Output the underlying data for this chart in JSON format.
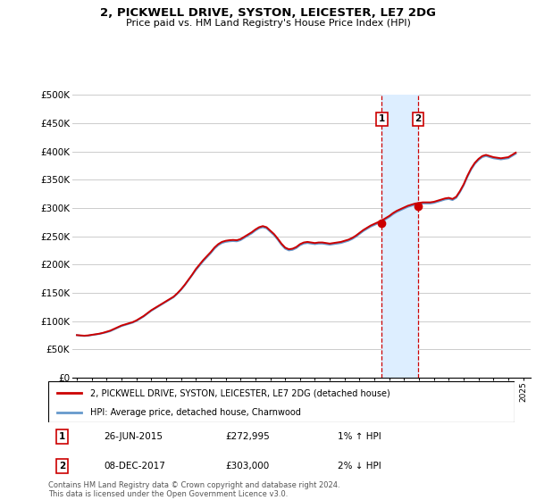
{
  "title": "2, PICKWELL DRIVE, SYSTON, LEICESTER, LE7 2DG",
  "subtitle": "Price paid vs. HM Land Registry's House Price Index (HPI)",
  "ylabel_ticks": [
    "£0",
    "£50K",
    "£100K",
    "£150K",
    "£200K",
    "£250K",
    "£300K",
    "£350K",
    "£400K",
    "£450K",
    "£500K"
  ],
  "ytick_values": [
    0,
    50000,
    100000,
    150000,
    200000,
    250000,
    300000,
    350000,
    400000,
    450000,
    500000
  ],
  "ylim": [
    0,
    500000
  ],
  "xlim_start": 1994.7,
  "xlim_end": 2025.5,
  "transaction1": {
    "date_num": 2015.49,
    "price": 272995,
    "label": "1",
    "hpi_pct": "1%",
    "hpi_dir": "↑",
    "date_str": "26-JUN-2015"
  },
  "transaction2": {
    "date_num": 2017.93,
    "price": 303000,
    "label": "2",
    "hpi_pct": "2%",
    "hpi_dir": "↓",
    "date_str": "08-DEC-2017"
  },
  "legend_line1": "2, PICKWELL DRIVE, SYSTON, LEICESTER, LE7 2DG (detached house)",
  "legend_line2": "HPI: Average price, detached house, Charnwood",
  "footer": "Contains HM Land Registry data © Crown copyright and database right 2024.\nThis data is licensed under the Open Government Licence v3.0.",
  "table_rows": [
    [
      "1",
      "26-JUN-2015",
      "£272,995",
      "1% ↑ HPI"
    ],
    [
      "2",
      "08-DEC-2017",
      "£303,000",
      "2% ↓ HPI"
    ]
  ],
  "line_color_red": "#cc0000",
  "line_color_blue": "#6699cc",
  "shade_color": "#ddeeff",
  "marker_box_color": "#cc0000",
  "background_color": "#ffffff",
  "grid_color": "#cccccc",
  "hpi_data": {
    "years": [
      1995.0,
      1995.25,
      1995.5,
      1995.75,
      1996.0,
      1996.25,
      1996.5,
      1996.75,
      1997.0,
      1997.25,
      1997.5,
      1997.75,
      1998.0,
      1998.25,
      1998.5,
      1998.75,
      1999.0,
      1999.25,
      1999.5,
      1999.75,
      2000.0,
      2000.25,
      2000.5,
      2000.75,
      2001.0,
      2001.25,
      2001.5,
      2001.75,
      2002.0,
      2002.25,
      2002.5,
      2002.75,
      2003.0,
      2003.25,
      2003.5,
      2003.75,
      2004.0,
      2004.25,
      2004.5,
      2004.75,
      2005.0,
      2005.25,
      2005.5,
      2005.75,
      2006.0,
      2006.25,
      2006.5,
      2006.75,
      2007.0,
      2007.25,
      2007.5,
      2007.75,
      2008.0,
      2008.25,
      2008.5,
      2008.75,
      2009.0,
      2009.25,
      2009.5,
      2009.75,
      2010.0,
      2010.25,
      2010.5,
      2010.75,
      2011.0,
      2011.25,
      2011.5,
      2011.75,
      2012.0,
      2012.25,
      2012.5,
      2012.75,
      2013.0,
      2013.25,
      2013.5,
      2013.75,
      2014.0,
      2014.25,
      2014.5,
      2014.75,
      2015.0,
      2015.25,
      2015.5,
      2015.75,
      2016.0,
      2016.25,
      2016.5,
      2016.75,
      2017.0,
      2017.25,
      2017.5,
      2017.75,
      2018.0,
      2018.25,
      2018.5,
      2018.75,
      2019.0,
      2019.25,
      2019.5,
      2019.75,
      2020.0,
      2020.25,
      2020.5,
      2020.75,
      2021.0,
      2021.25,
      2021.5,
      2021.75,
      2022.0,
      2022.25,
      2022.5,
      2022.75,
      2023.0,
      2023.25,
      2023.5,
      2023.75,
      2024.0,
      2024.25,
      2024.5
    ],
    "hpi_values": [
      75000,
      74000,
      73500,
      74000,
      75000,
      76000,
      77000,
      78500,
      80000,
      82000,
      85000,
      88000,
      91000,
      93000,
      95000,
      97000,
      100000,
      104000,
      108000,
      113000,
      118000,
      122000,
      126000,
      130000,
      134000,
      138000,
      142000,
      148000,
      155000,
      163000,
      172000,
      181000,
      190000,
      198000,
      206000,
      213000,
      220000,
      228000,
      234000,
      238000,
      240000,
      241000,
      241500,
      241000,
      243000,
      247000,
      251000,
      255000,
      260000,
      264000,
      266000,
      264000,
      258000,
      252000,
      244000,
      235000,
      228000,
      225000,
      226000,
      229000,
      234000,
      237000,
      238000,
      237000,
      236000,
      237000,
      237000,
      236000,
      235000,
      236000,
      237000,
      238000,
      240000,
      242000,
      245000,
      249000,
      254000,
      259000,
      263000,
      267000,
      270000,
      273000,
      276000,
      280000,
      284000,
      289000,
      293000,
      296000,
      299000,
      302000,
      304000,
      306000,
      307000,
      308000,
      308000,
      308000,
      309000,
      311000,
      313000,
      315000,
      316000,
      314000,
      318000,
      328000,
      340000,
      355000,
      368000,
      378000,
      385000,
      390000,
      392000,
      390000,
      388000,
      387000,
      386000,
      387000,
      388000,
      392000,
      396000
    ],
    "red_values": [
      75000,
      74500,
      74000,
      74500,
      75500,
      76500,
      77500,
      79000,
      81000,
      83000,
      86000,
      89000,
      92000,
      94000,
      96000,
      98000,
      101000,
      105000,
      109000,
      114000,
      119000,
      123000,
      127000,
      131000,
      135000,
      139000,
      143000,
      149000,
      156000,
      164000,
      173000,
      182000,
      192000,
      200000,
      208000,
      215000,
      222000,
      230000,
      236000,
      240000,
      242000,
      243000,
      243500,
      243000,
      245000,
      249000,
      253000,
      257000,
      262000,
      266000,
      268000,
      266000,
      260000,
      254000,
      246000,
      237000,
      230000,
      227000,
      228000,
      231000,
      236000,
      239000,
      240000,
      239000,
      238000,
      239000,
      239000,
      238000,
      237000,
      238000,
      239000,
      240000,
      242000,
      244000,
      247000,
      251000,
      256000,
      261000,
      265000,
      269000,
      272000,
      275000,
      278000,
      282000,
      286000,
      291000,
      295000,
      298000,
      301000,
      304000,
      306000,
      308000,
      309000,
      310000,
      310000,
      310000,
      311000,
      313000,
      315000,
      317000,
      318000,
      316000,
      320000,
      330000,
      342000,
      357000,
      370000,
      380000,
      387000,
      392000,
      394000,
      392000,
      390000,
      389000,
      388000,
      389000,
      390000,
      394000,
      398000
    ]
  }
}
